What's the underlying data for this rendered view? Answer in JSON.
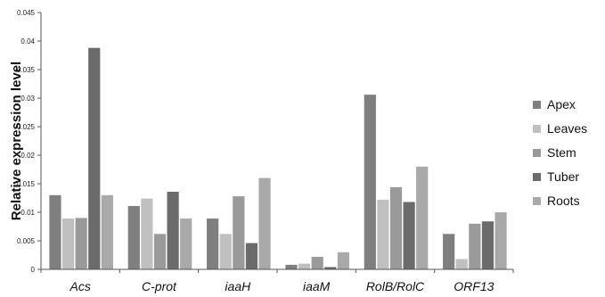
{
  "chart_data": {
    "type": "bar",
    "title": "",
    "xlabel": "",
    "ylabel": "Relative expression level",
    "ylim": [
      0,
      0.045
    ],
    "yticks": [
      "0",
      "0.005",
      "0.01",
      "0.015",
      "0.02",
      "0.025",
      "0.03",
      "0.035",
      "0.04",
      "0.045"
    ],
    "grid": false,
    "legend": "right",
    "categories": [
      "Acs",
      "C-prot",
      "iaaH",
      "iaaM",
      "RolB/RolC",
      "ORF13"
    ],
    "series": [
      {
        "name": "Apex",
        "color": "#7f7f7f",
        "values": [
          0.013,
          0.0111,
          0.0089,
          0.0008,
          0.0306,
          0.0062
        ]
      },
      {
        "name": "Leaves",
        "color": "#c0c0c0",
        "values": [
          0.0089,
          0.0124,
          0.0062,
          0.001,
          0.0122,
          0.0018
        ]
      },
      {
        "name": "Stem",
        "color": "#9a9a9a",
        "values": [
          0.009,
          0.0062,
          0.0128,
          0.0022,
          0.0144,
          0.008
        ]
      },
      {
        "name": "Tuber",
        "color": "#6b6b6b",
        "values": [
          0.0388,
          0.0136,
          0.0046,
          0.0004,
          0.0118,
          0.0084
        ]
      },
      {
        "name": "Roots",
        "color": "#a9a9a9",
        "values": [
          0.013,
          0.0089,
          0.016,
          0.003,
          0.018,
          0.01
        ]
      }
    ]
  }
}
